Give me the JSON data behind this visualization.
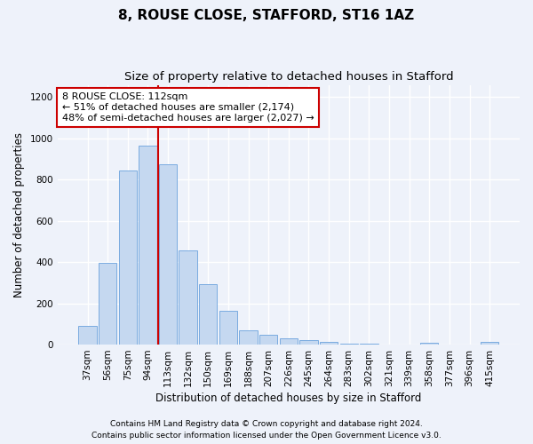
{
  "title1": "8, ROUSE CLOSE, STAFFORD, ST16 1AZ",
  "title2": "Size of property relative to detached houses in Stafford",
  "xlabel": "Distribution of detached houses by size in Stafford",
  "ylabel": "Number of detached properties",
  "categories": [
    "37sqm",
    "56sqm",
    "75sqm",
    "94sqm",
    "113sqm",
    "132sqm",
    "150sqm",
    "169sqm",
    "188sqm",
    "207sqm",
    "226sqm",
    "245sqm",
    "264sqm",
    "283sqm",
    "302sqm",
    "321sqm",
    "339sqm",
    "358sqm",
    "377sqm",
    "396sqm",
    "415sqm"
  ],
  "values": [
    90,
    395,
    845,
    965,
    875,
    455,
    295,
    162,
    68,
    48,
    30,
    20,
    12,
    5,
    3,
    2,
    0,
    10,
    0,
    0,
    12
  ],
  "bar_color": "#c5d8f0",
  "bar_edge_color": "#7aabe0",
  "vline_x": 3.5,
  "vline_color": "#cc0000",
  "annotation_text": "8 ROUSE CLOSE: 112sqm\n← 51% of detached houses are smaller (2,174)\n48% of semi-detached houses are larger (2,027) →",
  "annotation_box_color": "#ffffff",
  "annotation_box_edge_color": "#cc0000",
  "ylim": [
    0,
    1260
  ],
  "yticks": [
    0,
    200,
    400,
    600,
    800,
    1000,
    1200
  ],
  "footnote1": "Contains HM Land Registry data © Crown copyright and database right 2024.",
  "footnote2": "Contains public sector information licensed under the Open Government Licence v3.0.",
  "background_color": "#eef2fa",
  "grid_color": "#ffffff",
  "title_fontsize": 11,
  "subtitle_fontsize": 9.5,
  "axis_label_fontsize": 8.5,
  "tick_fontsize": 7.5,
  "footnote_fontsize": 6.5
}
